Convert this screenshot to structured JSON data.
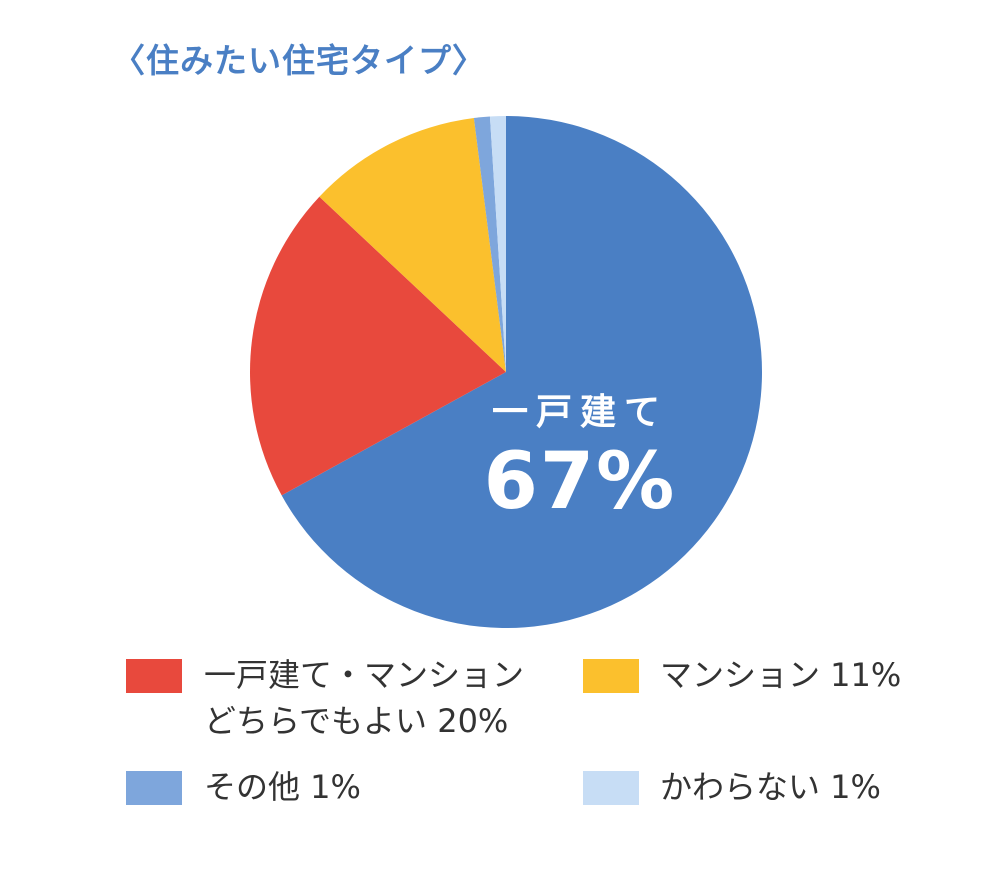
{
  "chart_data": {
    "type": "pie",
    "title": "〈住みたい住宅タイプ〉",
    "slices": [
      {
        "name": "一戸建て",
        "value": 67,
        "color": "#4a7fc4"
      },
      {
        "name": "一戸建て・マンションどちらでもよい",
        "value": 20,
        "color": "#e8493d"
      },
      {
        "name": "マンション",
        "value": 11,
        "color": "#fbc02d"
      },
      {
        "name": "その他",
        "value": 1,
        "color": "#7ea6dc"
      },
      {
        "name": "かわらない",
        "value": 1,
        "color": "#c7ddf5"
      }
    ],
    "center_label": {
      "category": "一戸建て",
      "value": "67%"
    },
    "legend": [
      {
        "line1": "一戸建て・マンション",
        "line2": "どちらでもよい 20%",
        "color": "#e8493d"
      },
      {
        "line1": "マンション 11%",
        "color": "#fbc02d"
      },
      {
        "line1": "その他 1%",
        "color": "#7ea6dc"
      },
      {
        "line1": "かわらない 1%",
        "color": "#c7ddf5"
      }
    ]
  }
}
